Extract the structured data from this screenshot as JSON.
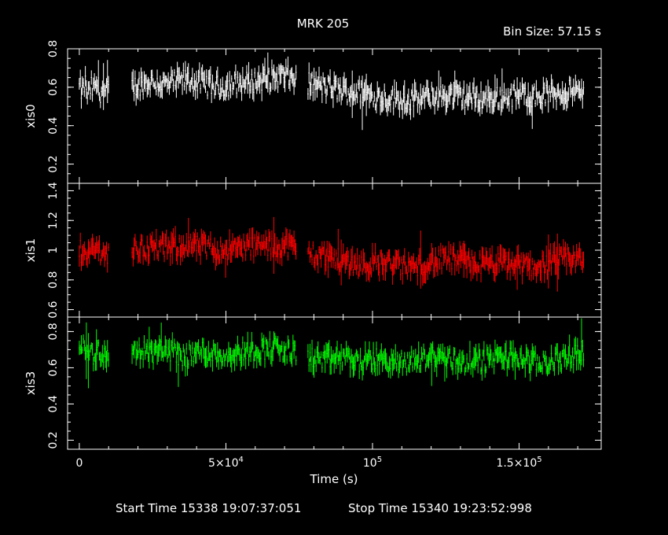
{
  "header": {
    "title": "MRK 205",
    "bin_size": "Bin Size: 57.15 s"
  },
  "footer": {
    "start_time": "Start Time 15338 19:07:37:051",
    "stop_time": "Stop Time 15340 19:23:52:998"
  },
  "chart_data": {
    "type": "scatter",
    "title": "MRK 205",
    "xlabel": "Time (s)",
    "xlim": [
      -4000,
      178000
    ],
    "x_ticks": [
      0,
      50000,
      100000,
      150000
    ],
    "x_tick_labels": [
      {
        "base": "0",
        "sup": ""
      },
      {
        "base": "5×10",
        "sup": "4"
      },
      {
        "base": "10",
        "sup": "5"
      },
      {
        "base": "1.5×10",
        "sup": "5"
      }
    ],
    "panels": [
      {
        "name": "xis0",
        "color": "#ffffff",
        "ylim": [
          0.1,
          0.8
        ],
        "ticks": [
          0.2,
          0.4,
          0.6,
          0.8
        ],
        "tick_labels": [
          "0.2",
          "0.4",
          "0.6",
          "0.8"
        ],
        "segments": [
          {
            "x": [
              0,
              1000,
              2000,
              3000,
              4000,
              5000,
              6000,
              7000,
              8000,
              9000,
              10000
            ],
            "y": [
              0.6,
              0.57,
              0.62,
              0.55,
              0.6,
              0.58,
              0.63,
              0.57,
              0.6,
              0.56,
              0.6
            ]
          },
          {
            "x": [
              18000,
              24000,
              30000,
              36000,
              42000,
              48000,
              54000,
              60000,
              66000,
              70000,
              74000
            ],
            "y": [
              0.6,
              0.63,
              0.61,
              0.64,
              0.62,
              0.6,
              0.62,
              0.63,
              0.65,
              0.66,
              0.64
            ]
          },
          {
            "x": [
              78000,
              84000,
              90000,
              96000,
              102000,
              108000,
              114000,
              120000,
              126000,
              132000,
              138000,
              144000,
              150000,
              156000,
              162000,
              168000,
              172000
            ],
            "y": [
              0.62,
              0.6,
              0.58,
              0.57,
              0.55,
              0.54,
              0.53,
              0.55,
              0.56,
              0.55,
              0.54,
              0.55,
              0.56,
              0.55,
              0.57,
              0.58,
              0.56
            ]
          }
        ]
      },
      {
        "name": "xis1",
        "color": "#ff0000",
        "ylim": [
          0.55,
          1.45
        ],
        "ticks": [
          0.6,
          0.8,
          1.0,
          1.2,
          1.4
        ],
        "tick_labels": [
          "0.6",
          "0.8",
          "1",
          "1.2",
          "1.4"
        ],
        "segments": [
          {
            "x": [
              0,
              1000,
              2000,
              3000,
              4000,
              5000,
              6000,
              7000,
              8000,
              9000,
              10000
            ],
            "y": [
              1.0,
              0.98,
              1.03,
              0.96,
              1.01,
              0.97,
              1.04,
              0.99,
              1.0,
              0.96,
              1.0
            ]
          },
          {
            "x": [
              18000,
              24000,
              30000,
              36000,
              42000,
              48000,
              54000,
              60000,
              66000,
              70000,
              74000
            ],
            "y": [
              1.0,
              1.02,
              1.01,
              1.04,
              1.02,
              1.0,
              1.01,
              1.03,
              1.02,
              1.04,
              1.01
            ]
          },
          {
            "x": [
              78000,
              84000,
              90000,
              96000,
              102000,
              108000,
              114000,
              120000,
              126000,
              132000,
              138000,
              144000,
              150000,
              156000,
              162000,
              168000,
              172000
            ],
            "y": [
              0.98,
              0.96,
              0.93,
              0.9,
              0.92,
              0.9,
              0.88,
              0.92,
              0.94,
              0.92,
              0.9,
              0.91,
              0.9,
              0.89,
              0.92,
              0.95,
              0.93
            ]
          }
        ]
      },
      {
        "name": "xis3",
        "color": "#00ff00",
        "ylim": [
          0.15,
          0.88
        ],
        "ticks": [
          0.2,
          0.4,
          0.6,
          0.8
        ],
        "tick_labels": [
          "0.2",
          "0.4",
          "0.6",
          "0.8"
        ],
        "segments": [
          {
            "x": [
              0,
              1000,
              2000,
              3000,
              4000,
              5000,
              6000,
              7000,
              8000,
              9000,
              10000
            ],
            "y": [
              0.72,
              0.68,
              0.74,
              0.66,
              0.7,
              0.65,
              0.72,
              0.67,
              0.69,
              0.64,
              0.66
            ]
          },
          {
            "x": [
              18000,
              24000,
              30000,
              36000,
              42000,
              48000,
              54000,
              60000,
              66000,
              70000,
              74000
            ],
            "y": [
              0.7,
              0.68,
              0.7,
              0.66,
              0.69,
              0.67,
              0.68,
              0.7,
              0.71,
              0.69,
              0.68
            ]
          },
          {
            "x": [
              78000,
              84000,
              90000,
              96000,
              102000,
              108000,
              114000,
              120000,
              126000,
              132000,
              138000,
              144000,
              150000,
              156000,
              162000,
              168000,
              172000
            ],
            "y": [
              0.66,
              0.64,
              0.66,
              0.63,
              0.65,
              0.62,
              0.64,
              0.66,
              0.65,
              0.63,
              0.64,
              0.66,
              0.65,
              0.62,
              0.64,
              0.67,
              0.7
            ]
          }
        ]
      }
    ]
  }
}
